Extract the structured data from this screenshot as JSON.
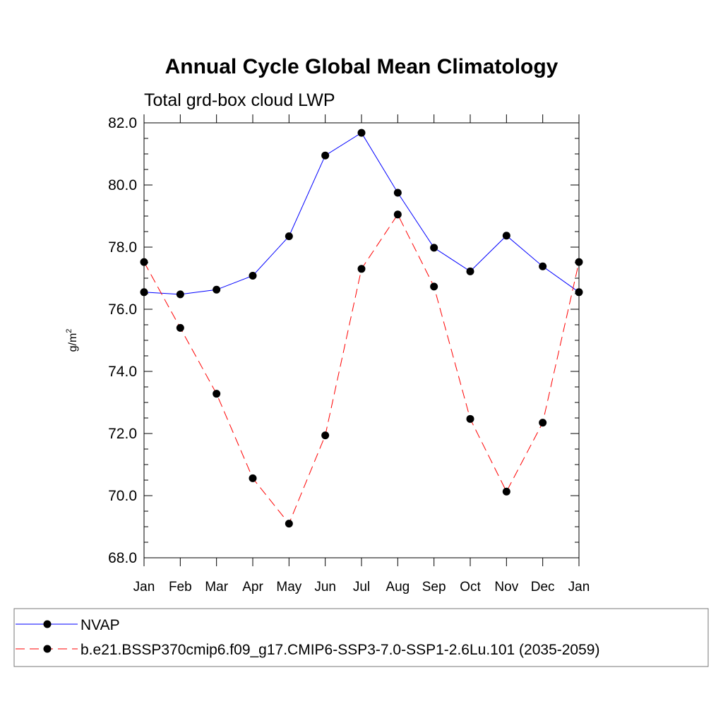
{
  "chart_data": {
    "type": "line",
    "title": "Annual Cycle Global Mean Climatology",
    "subtitle": "Total grd-box cloud LWP",
    "ylabel_base": "g/m",
    "ylabel_sup": "2",
    "ylim": [
      68.0,
      82.0
    ],
    "yticks": [
      "68.0",
      "70.0",
      "72.0",
      "74.0",
      "76.0",
      "78.0",
      "80.0",
      "82.0"
    ],
    "categories": [
      "Jan",
      "Feb",
      "Mar",
      "Apr",
      "May",
      "Jun",
      "Jul",
      "Aug",
      "Sep",
      "Oct",
      "Nov",
      "Dec",
      "Jan"
    ],
    "grid": false,
    "legend_position": "bottom",
    "series": [
      {
        "name": "NVAP",
        "color": "#0000ff",
        "dash": "solid",
        "values": [
          76.55,
          76.48,
          76.63,
          77.08,
          78.35,
          80.95,
          81.68,
          79.75,
          77.98,
          77.22,
          78.37,
          77.38,
          76.55
        ]
      },
      {
        "name": "b.e21.BSSP370cmip6.f09_g17.CMIP6-SSP3-7.0-SSP1-2.6Lu.101 (2035-2059)",
        "color": "#ff0000",
        "dash": "dashed",
        "values": [
          77.52,
          75.4,
          73.28,
          70.56,
          69.1,
          71.94,
          77.3,
          79.05,
          76.73,
          72.47,
          70.13,
          72.35,
          77.52
        ]
      }
    ]
  }
}
